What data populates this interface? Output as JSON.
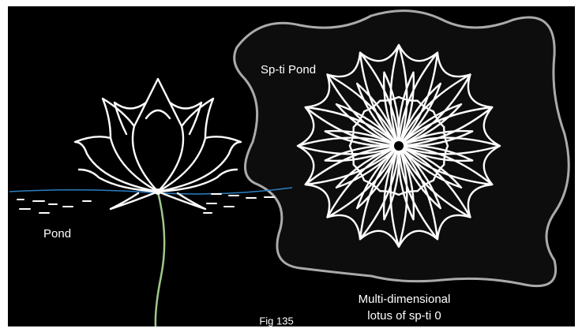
{
  "labels": {
    "spti_pond": "Sp-ti Pond",
    "pond": "Pond",
    "caption_line1": "Multi-dimensional",
    "caption_line2": "lotus of sp-ti 0"
  },
  "figure": "Fig 135"
}
